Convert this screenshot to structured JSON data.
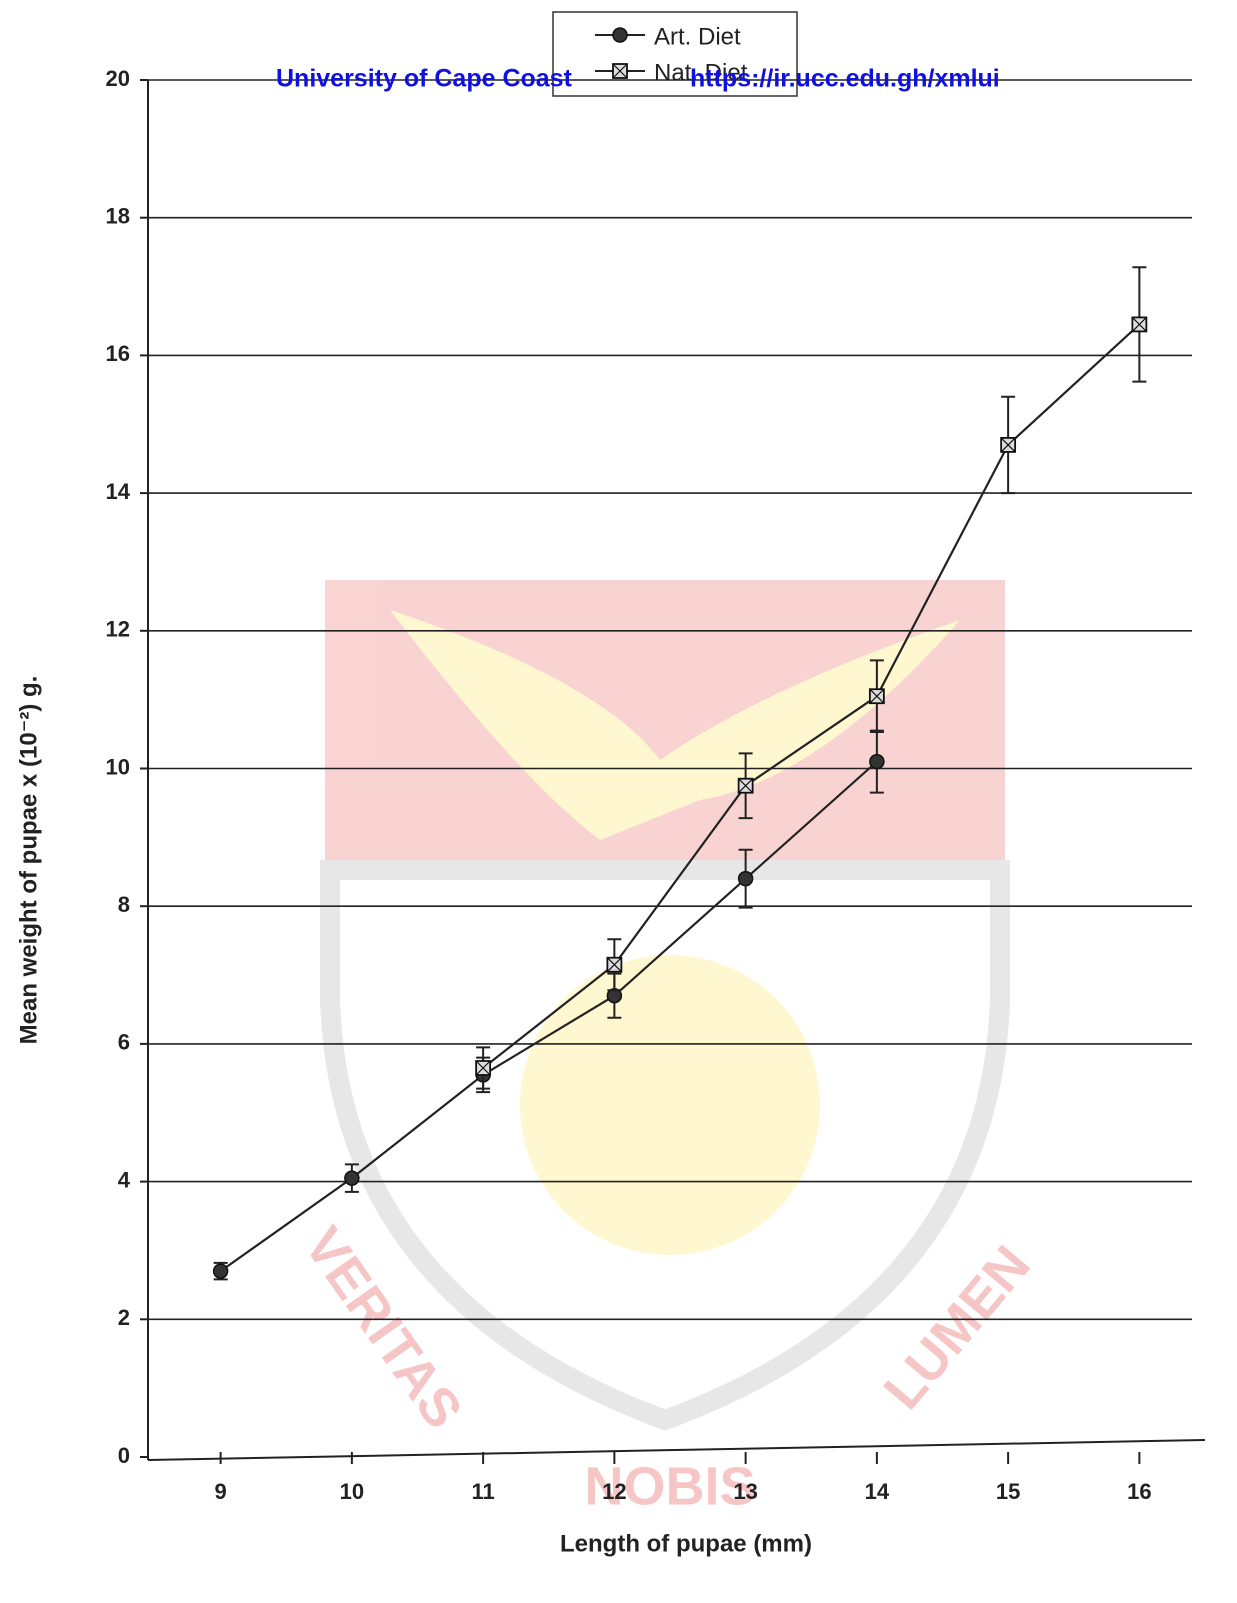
{
  "chart_data": {
    "type": "line",
    "xlabel": "Length of pupae (mm)",
    "ylabel": "Mean weight of pupae x (10⁻²) g.",
    "xlim": [
      8.5,
      16.5
    ],
    "xticks": [
      9,
      10,
      11,
      12,
      13,
      14,
      15,
      16
    ],
    "ylim": [
      0,
      20
    ],
    "yticks": [
      0,
      2,
      4,
      6,
      8,
      10,
      12,
      14,
      16,
      18,
      20
    ],
    "grid": true,
    "legend": "top",
    "series": [
      {
        "name": "Art. Diet",
        "color": "#222222",
        "marker": "circle",
        "x": [
          9,
          10,
          11,
          12,
          13,
          14
        ],
        "values": [
          2.7,
          4.05,
          5.55,
          6.7,
          8.4,
          10.1
        ],
        "errors": [
          0.12,
          0.2,
          0.25,
          0.32,
          0.42,
          0.45
        ]
      },
      {
        "name": "Nat. Diet",
        "color": "#222222",
        "marker": "square",
        "x": [
          11,
          12,
          13,
          14,
          15,
          16
        ],
        "values": [
          5.65,
          7.15,
          9.75,
          11.05,
          14.7,
          16.45
        ],
        "errors": [
          0.3,
          0.37,
          0.47,
          0.52,
          0.7,
          0.83
        ]
      }
    ]
  },
  "watermark": {
    "header": [
      "University of Cape Coast",
      "https://ir.ucc.edu.gh/xmlui"
    ],
    "logo_text": [
      "VERITAS",
      "NOBIS",
      "LUMEN"
    ]
  }
}
